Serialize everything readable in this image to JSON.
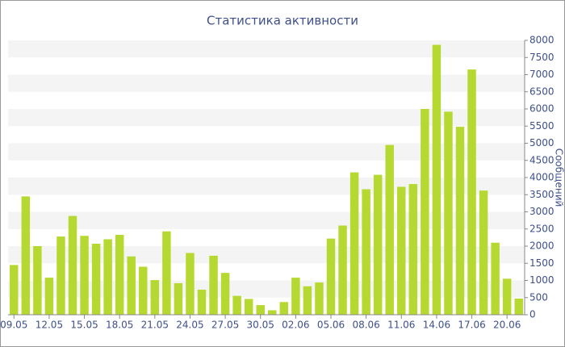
{
  "chart_data": {
    "type": "bar",
    "title": "Статистика активности",
    "y_axis_label": "Сообщений",
    "categories": [
      "09.05",
      null,
      null,
      "12.05",
      null,
      null,
      "15.05",
      null,
      null,
      "18.05",
      null,
      null,
      "21.05",
      null,
      null,
      "24.05",
      null,
      null,
      "27.05",
      null,
      null,
      "30.05",
      null,
      null,
      "02.06",
      null,
      null,
      "05.06",
      null,
      null,
      "08.06",
      null,
      null,
      "11.06",
      null,
      null,
      "14.06",
      null,
      null,
      "17.06",
      null,
      null,
      "20.06",
      null
    ],
    "values": [
      1450,
      3450,
      2000,
      1080,
      2280,
      2880,
      2300,
      2070,
      2200,
      2330,
      1700,
      1400,
      1010,
      2430,
      920,
      1800,
      730,
      1720,
      1220,
      550,
      460,
      280,
      130,
      370,
      1080,
      830,
      940,
      2220,
      2600,
      4150,
      3660,
      4080,
      4950,
      3730,
      3810,
      6000,
      7870,
      5920,
      5480,
      7150,
      3620,
      2100,
      1050,
      470
    ],
    "color": "#b5d930",
    "ylim": [
      0,
      8000
    ],
    "yticks": [
      0,
      500,
      1000,
      1500,
      2000,
      2500,
      3000,
      3500,
      4000,
      4500,
      5000,
      5500,
      6000,
      6500,
      7000,
      7500,
      8000
    ],
    "grid": true
  }
}
